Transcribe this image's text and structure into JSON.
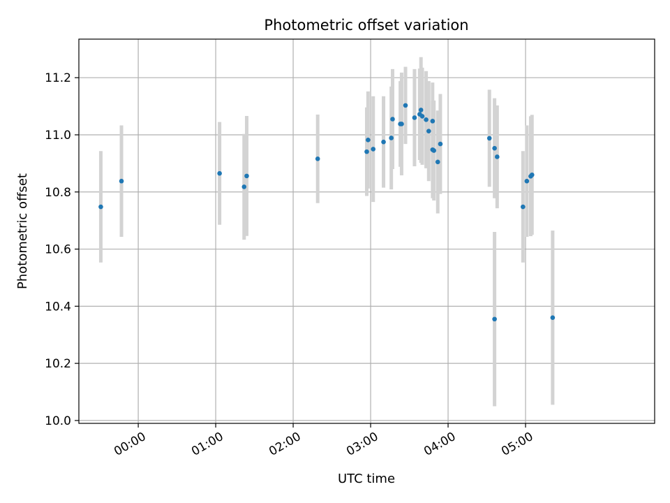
{
  "chart_data": {
    "type": "scatter",
    "title": "Photometric offset variation",
    "xlabel": "UTC time",
    "ylabel": "Photometric offset",
    "grid": true,
    "legend": "none",
    "x_unit": "minutes after 00:00 UTC",
    "xlim": [
      -46,
      400
    ],
    "ylim": [
      9.99,
      11.335
    ],
    "x_ticks": [
      {
        "value": 0,
        "label": "00:00"
      },
      {
        "value": 60,
        "label": "01:00"
      },
      {
        "value": 120,
        "label": "02:00"
      },
      {
        "value": 180,
        "label": "03:00"
      },
      {
        "value": 240,
        "label": "04:00"
      },
      {
        "value": 300,
        "label": "05:00"
      }
    ],
    "y_ticks": [
      {
        "value": 10.0,
        "label": "10.0"
      },
      {
        "value": 10.2,
        "label": "10.2"
      },
      {
        "value": 10.4,
        "label": "10.4"
      },
      {
        "value": 10.6,
        "label": "10.6"
      },
      {
        "value": 10.8,
        "label": "10.8"
      },
      {
        "value": 11.0,
        "label": "11.0"
      },
      {
        "value": 11.2,
        "label": "11.2"
      }
    ],
    "colors": {
      "point": "#1f77b4",
      "errorbar": "#d3d3d3",
      "grid": "#b0b0b0"
    },
    "series": [
      {
        "x": [
          -29,
          -13,
          63,
          82,
          84,
          139,
          177,
          178,
          182,
          190,
          196,
          197,
          203,
          204,
          207,
          214,
          218,
          219,
          220,
          223,
          225,
          228,
          228,
          229,
          232,
          234,
          272,
          276,
          278,
          276,
          298,
          301,
          304,
          305,
          321
        ],
        "y": [
          10.748,
          10.838,
          10.865,
          10.818,
          10.856,
          10.916,
          10.941,
          10.982,
          10.95,
          10.975,
          10.989,
          11.055,
          11.038,
          11.038,
          11.103,
          11.06,
          11.072,
          11.087,
          11.065,
          11.053,
          11.013,
          11.048,
          10.948,
          10.945,
          10.905,
          10.968,
          10.988,
          10.953,
          10.923,
          10.355,
          10.748,
          10.838,
          10.855,
          10.86,
          10.36
        ],
        "yerr": [
          0.195,
          0.195,
          0.18,
          0.185,
          0.21,
          0.155,
          0.155,
          0.17,
          0.185,
          0.16,
          0.18,
          0.175,
          0.15,
          0.18,
          0.135,
          0.17,
          0.16,
          0.185,
          0.17,
          0.17,
          0.175,
          0.135,
          0.17,
          0.175,
          0.18,
          0.175,
          0.17,
          0.175,
          0.18,
          0.305,
          0.195,
          0.195,
          0.21,
          0.21,
          0.305
        ]
      }
    ]
  }
}
